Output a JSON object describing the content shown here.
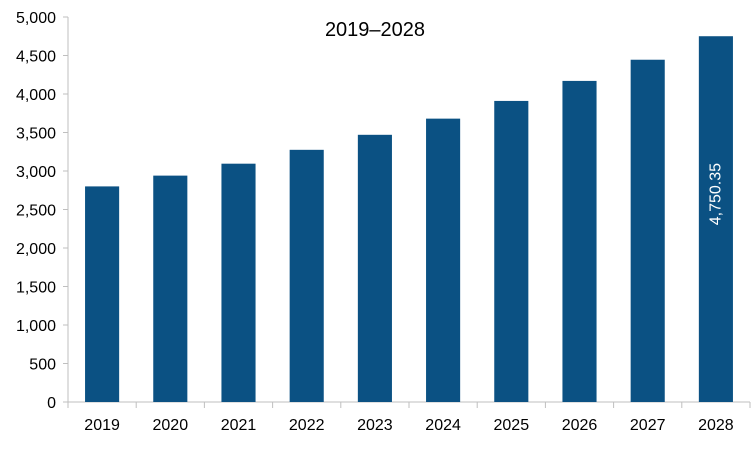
{
  "chart_data": {
    "type": "bar",
    "title": "2019–2028",
    "xlabel": "",
    "ylabel": "",
    "categories": [
      "2019",
      "2020",
      "2021",
      "2022",
      "2023",
      "2024",
      "2025",
      "2026",
      "2027",
      "2028"
    ],
    "values": [
      2800,
      2940,
      3095,
      3275,
      3470,
      3680,
      3910,
      4170,
      4445,
      4750.35
    ],
    "ylim": [
      0,
      5000
    ],
    "yticks": [
      0,
      500,
      1000,
      1500,
      2000,
      2500,
      3000,
      3500,
      4000,
      4500,
      5000
    ],
    "ytick_labels": [
      "0",
      "500",
      "1,000",
      "1,500",
      "2,000",
      "2,500",
      "3,000",
      "3,500",
      "4,000",
      "4,500",
      "5,000"
    ],
    "data_labels": [
      {
        "category": "2028",
        "text": "4,750.35",
        "rotation": "vertical"
      }
    ],
    "grid": false,
    "legend": "none",
    "bar_color": "#0b5183",
    "axis_color": "#bfbfbf"
  }
}
